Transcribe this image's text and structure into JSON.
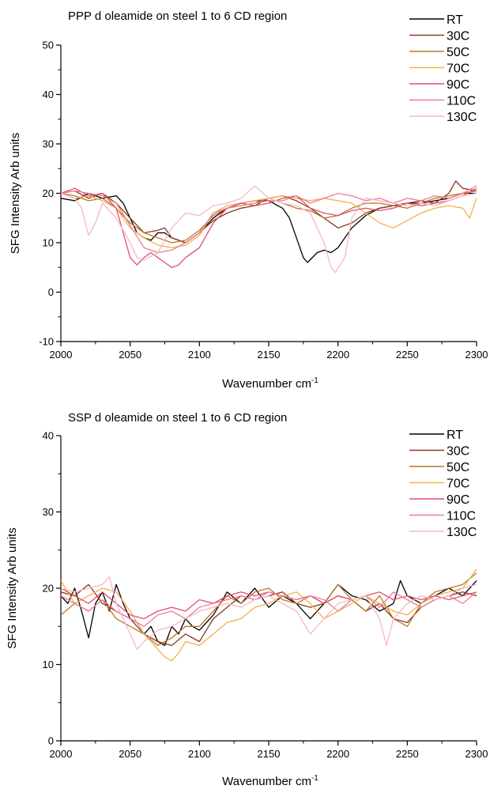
{
  "chart_data": [
    {
      "type": "line",
      "title": "PPP d oleamide on steel 1 to 6 CD region",
      "xlabel": "Wavenumber cm",
      "xlabel_sup": "-1",
      "ylabel": "SFG Intensity Arb units",
      "xlim": [
        2000,
        2300
      ],
      "ylim": [
        -10,
        50
      ],
      "x_ticks": [
        "2000",
        "2050",
        "2100",
        "2150",
        "2200",
        "2250",
        "2300"
      ],
      "y_ticks": [
        "-10",
        "0",
        "10",
        "20",
        "30",
        "40",
        "50"
      ],
      "grid": false,
      "legend_position": "top-right",
      "series": [
        {
          "name": "RT",
          "color": "#000000",
          "x": [
            2000,
            2010,
            2020,
            2030,
            2040,
            2045,
            2050,
            2055,
            2060,
            2065,
            2070,
            2075,
            2080,
            2085,
            2090,
            2100,
            2110,
            2120,
            2130,
            2140,
            2150,
            2160,
            2165,
            2170,
            2175,
            2178,
            2185,
            2190,
            2195,
            2200,
            2205,
            2210,
            2220,
            2230,
            2240,
            2250,
            2260,
            2270,
            2280,
            2290,
            2300
          ],
          "values": [
            19,
            18.5,
            20,
            19,
            19.5,
            18,
            15,
            12,
            11,
            10.5,
            12,
            12,
            11,
            10.5,
            10,
            12,
            15,
            17,
            18,
            18.5,
            18.5,
            17,
            15,
            11,
            7,
            6,
            8,
            8.5,
            8,
            9,
            11,
            13,
            15.5,
            17,
            17.5,
            18,
            18,
            18.5,
            19,
            20,
            20
          ]
        },
        {
          "name": "30C",
          "color": "#8B3A1A",
          "x": [
            2000,
            2010,
            2020,
            2030,
            2040,
            2050,
            2060,
            2070,
            2075,
            2080,
            2090,
            2100,
            2110,
            2120,
            2130,
            2140,
            2150,
            2160,
            2170,
            2180,
            2190,
            2200,
            2210,
            2220,
            2230,
            2240,
            2250,
            2260,
            2270,
            2280,
            2285,
            2290,
            2300
          ],
          "values": [
            20,
            20.5,
            19,
            20,
            18,
            15,
            12,
            12.5,
            13,
            11,
            10,
            12,
            14.5,
            16,
            17,
            17.5,
            19,
            19.5,
            18.5,
            17,
            15,
            13,
            14,
            16,
            17,
            17.5,
            18,
            18.5,
            18,
            20,
            22.5,
            21,
            20.5
          ]
        },
        {
          "name": "50C",
          "color": "#B8752E",
          "x": [
            2000,
            2010,
            2020,
            2030,
            2040,
            2050,
            2060,
            2070,
            2080,
            2090,
            2100,
            2110,
            2120,
            2130,
            2140,
            2150,
            2160,
            2170,
            2180,
            2190,
            2200,
            2210,
            2220,
            2230,
            2240,
            2250,
            2260,
            2270,
            2280,
            2290,
            2300
          ],
          "values": [
            20,
            19.5,
            18.5,
            19,
            17,
            14,
            12,
            11,
            10,
            10.5,
            12.5,
            15.5,
            17,
            17.5,
            18,
            19,
            18,
            17,
            16.5,
            15,
            15.5,
            17,
            18,
            18,
            17.5,
            17,
            18,
            19,
            19.5,
            20,
            20.5
          ]
        },
        {
          "name": "70C",
          "color": "#F5B04A",
          "x": [
            2000,
            2010,
            2020,
            2030,
            2040,
            2050,
            2060,
            2070,
            2080,
            2090,
            2100,
            2110,
            2120,
            2130,
            2140,
            2150,
            2160,
            2170,
            2180,
            2190,
            2200,
            2210,
            2220,
            2230,
            2240,
            2250,
            2260,
            2270,
            2280,
            2290,
            2295,
            2300
          ],
          "values": [
            20,
            19,
            19.5,
            18.5,
            17,
            13,
            11,
            9.5,
            9,
            9.5,
            11.5,
            16,
            17.5,
            18,
            18.5,
            19,
            19.5,
            19,
            18.5,
            19,
            18.5,
            18,
            16,
            14,
            13,
            14.5,
            16,
            17,
            17.5,
            17,
            15,
            19
          ]
        },
        {
          "name": "90C",
          "color": "#E0506E",
          "x": [
            2000,
            2010,
            2020,
            2030,
            2040,
            2045,
            2050,
            2055,
            2060,
            2065,
            2070,
            2075,
            2080,
            2085,
            2090,
            2100,
            2110,
            2120,
            2130,
            2140,
            2150,
            2160,
            2170,
            2180,
            2190,
            2200,
            2210,
            2220,
            2230,
            2240,
            2250,
            2260,
            2270,
            2280,
            2290,
            2300
          ],
          "values": [
            20,
            21,
            19.5,
            20,
            17,
            12,
            7,
            5.5,
            7,
            8,
            7,
            6,
            5,
            5.5,
            7,
            9,
            14,
            17,
            18,
            17.5,
            18,
            19,
            19.5,
            17,
            16,
            15.5,
            16.5,
            17,
            16.5,
            17,
            18,
            17.5,
            18,
            18.5,
            19.5,
            21
          ]
        },
        {
          "name": "110C",
          "color": "#F07C96",
          "x": [
            2000,
            2010,
            2020,
            2030,
            2040,
            2050,
            2060,
            2070,
            2080,
            2090,
            2100,
            2110,
            2120,
            2130,
            2140,
            2150,
            2160,
            2170,
            2180,
            2190,
            2200,
            2210,
            2220,
            2230,
            2240,
            2250,
            2260,
            2270,
            2280,
            2290,
            2300
          ],
          "values": [
            20,
            20.5,
            20,
            19.5,
            18,
            13.5,
            9,
            8,
            8.5,
            10,
            12,
            16,
            17,
            17.5,
            18,
            18.5,
            18.5,
            19.5,
            18,
            19,
            20,
            19.5,
            18.5,
            19,
            18,
            19,
            18.5,
            19.5,
            19,
            20,
            21.5
          ]
        },
        {
          "name": "130C",
          "color": "#F5B7C6",
          "x": [
            2000,
            2010,
            2015,
            2020,
            2025,
            2030,
            2040,
            2050,
            2055,
            2060,
            2070,
            2080,
            2090,
            2100,
            2110,
            2120,
            2130,
            2140,
            2150,
            2160,
            2170,
            2180,
            2190,
            2195,
            2198,
            2205,
            2210,
            2220,
            2230,
            2240,
            2250,
            2260,
            2270,
            2280,
            2290,
            2300
          ],
          "values": [
            20,
            19,
            17,
            11.5,
            14,
            18,
            15,
            10,
            7,
            6.5,
            8,
            13,
            16,
            15.5,
            17.5,
            18,
            19,
            21.5,
            19,
            18,
            17.5,
            16,
            10,
            5,
            4,
            7,
            15,
            19,
            18.5,
            18,
            17.5,
            18,
            17.5,
            18.5,
            19.5,
            20
          ]
        }
      ]
    },
    {
      "type": "line",
      "title": "SSP d oleamide on steel 1 to 6 CD region",
      "xlabel": "Wavenumber cm",
      "xlabel_sup": "-1",
      "ylabel": "SFG Intensity Arb units",
      "xlim": [
        2000,
        2300
      ],
      "ylim": [
        0,
        40
      ],
      "x_ticks": [
        "2000",
        "2050",
        "2100",
        "2150",
        "2200",
        "2250",
        "2300"
      ],
      "y_ticks": [
        "0",
        "10",
        "20",
        "30",
        "40"
      ],
      "grid": false,
      "legend_position": "top-right",
      "series": [
        {
          "name": "RT",
          "color": "#000000",
          "x": [
            2000,
            2005,
            2010,
            2015,
            2020,
            2025,
            2030,
            2035,
            2040,
            2045,
            2050,
            2055,
            2060,
            2065,
            2070,
            2075,
            2080,
            2085,
            2090,
            2095,
            2100,
            2110,
            2120,
            2130,
            2140,
            2150,
            2160,
            2170,
            2180,
            2190,
            2200,
            2210,
            2220,
            2230,
            2240,
            2245,
            2250,
            2260,
            2270,
            2280,
            2290,
            2300
          ],
          "values": [
            19,
            18,
            20,
            17,
            13.5,
            18,
            19.5,
            17,
            20.5,
            18,
            16,
            15.5,
            14,
            15,
            13,
            12.5,
            15,
            14,
            16,
            15,
            14.5,
            16.5,
            19.5,
            18,
            20,
            17.5,
            19,
            18,
            16,
            18,
            20.5,
            19,
            18.5,
            17,
            18,
            21,
            19,
            18,
            19,
            20,
            19,
            21
          ]
        },
        {
          "name": "30C",
          "color": "#8B3A1A",
          "x": [
            2000,
            2010,
            2020,
            2030,
            2040,
            2050,
            2060,
            2070,
            2080,
            2090,
            2100,
            2110,
            2120,
            2130,
            2140,
            2150,
            2160,
            2170,
            2180,
            2190,
            2200,
            2210,
            2220,
            2230,
            2240,
            2250,
            2260,
            2270,
            2280,
            2290,
            2300
          ],
          "values": [
            19.5,
            19,
            20.5,
            18,
            17,
            16,
            14,
            13,
            12.5,
            14,
            13,
            16,
            17.5,
            19,
            18.5,
            19,
            19.5,
            18,
            17.5,
            18,
            19,
            18.5,
            17,
            18,
            16,
            15.5,
            17.5,
            18.5,
            19,
            19.5,
            19
          ]
        },
        {
          "name": "50C",
          "color": "#B8752E",
          "x": [
            2000,
            2010,
            2020,
            2030,
            2040,
            2050,
            2060,
            2070,
            2080,
            2090,
            2100,
            2110,
            2120,
            2130,
            2140,
            2150,
            2160,
            2170,
            2180,
            2190,
            2200,
            2210,
            2220,
            2230,
            2240,
            2250,
            2260,
            2270,
            2280,
            2290,
            2300
          ],
          "values": [
            16.5,
            18,
            17,
            18.5,
            16,
            15,
            14,
            12.5,
            13.5,
            15,
            15,
            17,
            19,
            18,
            19.5,
            20,
            18.5,
            18,
            19,
            18,
            20.5,
            18.5,
            17,
            19,
            16,
            15,
            18,
            19.5,
            20,
            20.5,
            22
          ]
        },
        {
          "name": "70C",
          "color": "#F5B04A",
          "x": [
            2000,
            2010,
            2020,
            2030,
            2040,
            2050,
            2060,
            2070,
            2075,
            2080,
            2085,
            2090,
            2100,
            2110,
            2120,
            2130,
            2140,
            2150,
            2160,
            2170,
            2180,
            2190,
            2200,
            2210,
            2220,
            2230,
            2240,
            2250,
            2260,
            2270,
            2280,
            2290,
            2300
          ],
          "values": [
            21,
            18,
            19,
            20,
            19.5,
            17,
            14,
            12,
            11,
            10.5,
            11.5,
            13,
            12.5,
            14,
            15.5,
            16,
            17.5,
            18,
            19,
            19.5,
            18,
            16,
            17,
            18,
            19,
            18,
            17,
            16.5,
            18,
            19,
            19.5,
            20,
            22.5
          ]
        },
        {
          "name": "90C",
          "color": "#E0506E",
          "x": [
            2000,
            2010,
            2020,
            2030,
            2040,
            2050,
            2060,
            2070,
            2080,
            2090,
            2100,
            2110,
            2120,
            2130,
            2140,
            2150,
            2160,
            2170,
            2180,
            2190,
            2200,
            2210,
            2220,
            2230,
            2240,
            2250,
            2260,
            2270,
            2280,
            2290,
            2300
          ],
          "values": [
            20,
            19,
            18,
            19.5,
            18,
            16.5,
            16,
            17,
            17.5,
            17,
            18.5,
            18,
            19,
            19.5,
            19,
            19.5,
            19,
            18.5,
            19,
            18,
            19,
            18.5,
            19,
            19.5,
            18.5,
            19,
            18.5,
            19,
            18.5,
            19,
            19.5
          ]
        },
        {
          "name": "110C",
          "color": "#F07C96",
          "x": [
            2000,
            2010,
            2020,
            2030,
            2040,
            2050,
            2060,
            2070,
            2080,
            2090,
            2100,
            2110,
            2120,
            2130,
            2140,
            2150,
            2160,
            2170,
            2180,
            2190,
            2200,
            2210,
            2220,
            2230,
            2240,
            2250,
            2260,
            2270,
            2280,
            2290,
            2300
          ],
          "values": [
            19,
            18,
            17,
            18.5,
            17,
            16,
            15,
            16.5,
            17,
            16,
            17.5,
            18,
            18.5,
            19,
            18.5,
            19.5,
            19,
            18.5,
            19,
            18.5,
            17,
            18.5,
            19,
            17.5,
            19.5,
            18.5,
            17.5,
            18.5,
            19,
            18,
            19.5
          ]
        },
        {
          "name": "130C",
          "color": "#F5B7C6",
          "x": [
            2000,
            2010,
            2020,
            2030,
            2035,
            2040,
            2050,
            2055,
            2060,
            2070,
            2080,
            2090,
            2100,
            2110,
            2120,
            2130,
            2140,
            2150,
            2160,
            2170,
            2180,
            2190,
            2200,
            2210,
            2220,
            2230,
            2235,
            2240,
            2250,
            2260,
            2270,
            2280,
            2290,
            2300
          ],
          "values": [
            20,
            19.5,
            20,
            20.5,
            21.5,
            18,
            14,
            12,
            13,
            14.5,
            15,
            16,
            17,
            17.5,
            18,
            17.5,
            18.5,
            19,
            18,
            17,
            14,
            16,
            18,
            18.5,
            19,
            16,
            12.5,
            16,
            18,
            19,
            18.5,
            19,
            20,
            20.5
          ]
        }
      ]
    }
  ]
}
